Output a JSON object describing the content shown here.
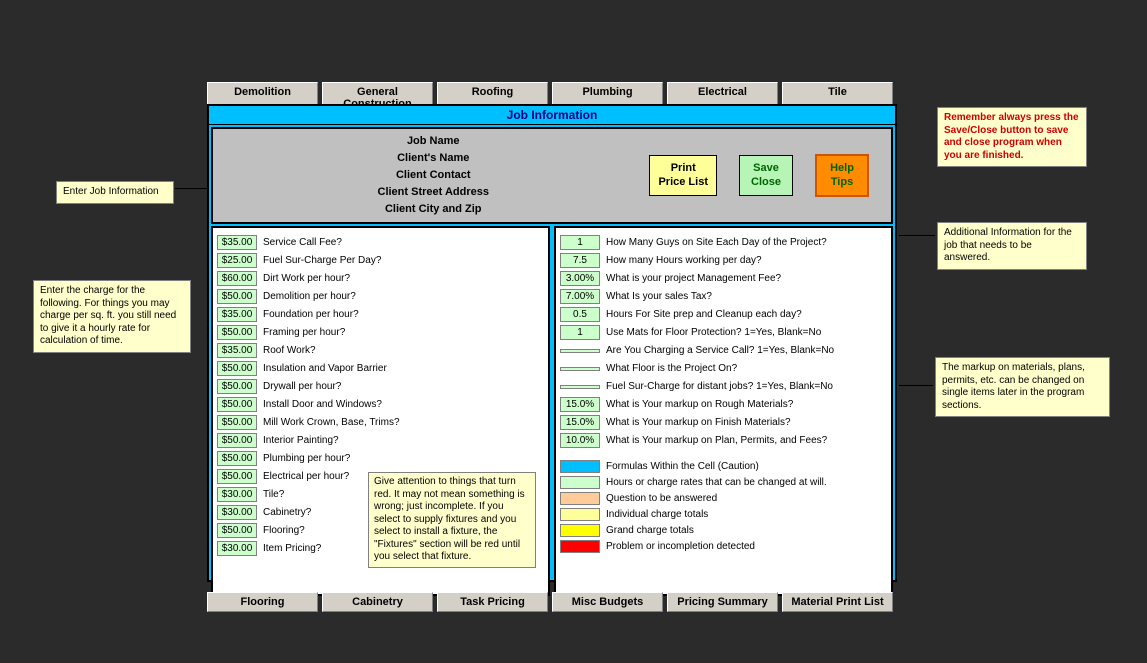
{
  "tabs_top": [
    "Demolition",
    "General Construction",
    "Roofing",
    "Plumbing",
    "Electrical",
    "Tile"
  ],
  "tabs_bottom": [
    "Flooring",
    "Cabinetry",
    "Task Pricing",
    "Misc Budgets",
    "Pricing Summary",
    "Material Print List"
  ],
  "title": "Job Information",
  "job_fields": [
    "Job Name",
    "Client's Name",
    "Client Contact",
    "Client Street Address",
    "Client City and Zip"
  ],
  "buttons": {
    "print": "Print\nPrice List",
    "save": "Save\nClose",
    "help": "Help\nTips"
  },
  "rates": [
    {
      "v": "$35.00",
      "l": "Service Call Fee?"
    },
    {
      "v": "$25.00",
      "l": "Fuel Sur-Charge Per Day?"
    },
    {
      "v": "$60.00",
      "l": "Dirt Work per hour?"
    },
    {
      "v": "$50.00",
      "l": "Demolition per hour?"
    },
    {
      "v": "$35.00",
      "l": "Foundation per hour?"
    },
    {
      "v": "$50.00",
      "l": "Framing per hour?"
    },
    {
      "v": "$35.00",
      "l": "Roof Work?"
    },
    {
      "v": "$50.00",
      "l": "Insulation and Vapor Barrier"
    },
    {
      "v": "$50.00",
      "l": "Drywall per hour?"
    },
    {
      "v": "$50.00",
      "l": "Install Door and Windows?"
    },
    {
      "v": "$50.00",
      "l": "Mill Work Crown, Base, Trims?"
    },
    {
      "v": "$50.00",
      "l": "Interior Painting?"
    },
    {
      "v": "$50.00",
      "l": "Plumbing per hour?"
    },
    {
      "v": "$50.00",
      "l": "Electrical per hour?"
    },
    {
      "v": "$30.00",
      "l": "Tile?"
    },
    {
      "v": "$30.00",
      "l": "Cabinetry?"
    },
    {
      "v": "$50.00",
      "l": "Flooring?"
    },
    {
      "v": "$30.00",
      "l": "Item Pricing?"
    }
  ],
  "questions": [
    {
      "v": "1",
      "l": "How Many Guys on Site Each Day of the Project?"
    },
    {
      "v": "7.5",
      "l": "How many Hours working per day?"
    },
    {
      "v": "3.00%",
      "l": "What is your project Management Fee?"
    },
    {
      "v": "7.00%",
      "l": "What Is your sales Tax?"
    },
    {
      "v": "0.5",
      "l": "Hours For Site prep and Cleanup each day?"
    },
    {
      "v": "1",
      "l": "Use Mats for Floor Protection? 1=Yes, Blank=No"
    },
    {
      "v": "",
      "l": "Are You Charging a Service Call? 1=Yes, Blank=No"
    },
    {
      "v": "",
      "l": "What Floor is the Project On?"
    },
    {
      "v": "",
      "l": "Fuel Sur-Charge for distant jobs?  1=Yes, Blank=No"
    },
    {
      "v": "15.0%",
      "l": "What is Your markup on Rough Materials?"
    },
    {
      "v": "15.0%",
      "l": "What is Your markup on Finish Materials?"
    },
    {
      "v": "10.0%",
      "l": "What is Your markup on Plan, Permits, and Fees?"
    }
  ],
  "legend": [
    {
      "c": "#00bfff",
      "l": "Formulas Within the Cell (Caution)"
    },
    {
      "c": "#ccffcc",
      "l": "Hours or charge rates that can be changed at will."
    },
    {
      "c": "#ffcc99",
      "l": "Question to be answered"
    },
    {
      "c": "#ffff99",
      "l": "Individual charge totals"
    },
    {
      "c": "#ffff00",
      "l": "Grand charge totals"
    },
    {
      "c": "#ff0000",
      "l": "Problem or incompletion detected"
    }
  ],
  "callouts": {
    "enter_job": "Enter Job Information",
    "enter_charge": "Enter the charge for the following.  For things you may charge per sq. ft. you still need to give it a hourly rate for calculation of time.",
    "remember": "Remember always press the Save/Close button to save and close program when you are finished.",
    "additional": "Additional Information for the job that needs to be answered.",
    "markup": "The markup on materials, plans, permits, etc. can be changed on single items later in the program sections.",
    "attention": "Give attention to things that turn red.  It may not mean something is wrong; just incomplete.  If you select to supply fixtures and you select to install a fixture, the \"Fixtures\" section will be red until you select that fixture."
  }
}
